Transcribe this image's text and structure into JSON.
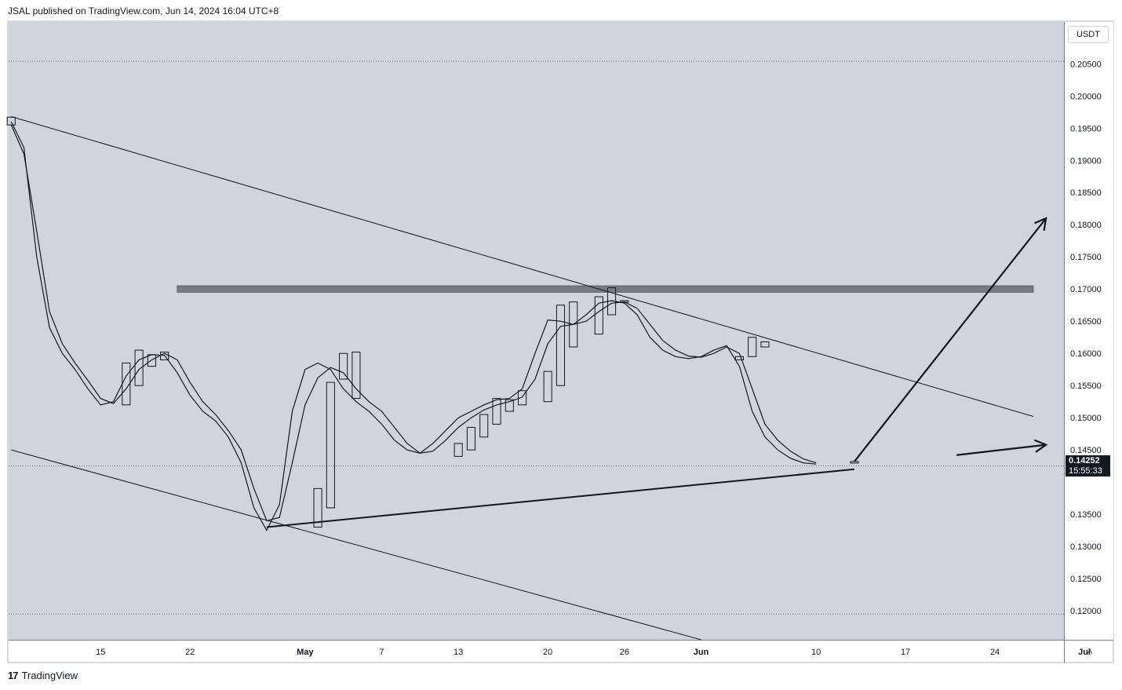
{
  "header": {
    "attribution": "JSAL published on TradingView.com, Jun 14, 2024 16:04 UTC+8"
  },
  "footer": {
    "logo_mark": "17",
    "brand": "TradingView"
  },
  "price_scale": {
    "currency": "USDT",
    "auto_label": "A"
  },
  "last_price": {
    "value": "0.14252",
    "countdown": "15:55:33"
  },
  "colors": {
    "background": "#d1d4dc",
    "line": "#131722",
    "zone": "#787b86",
    "grid": "#6a6d78"
  },
  "chart_data": {
    "type": "candlestick",
    "title": "",
    "x_ticks": [
      {
        "label": "15",
        "day": 15
      },
      {
        "label": "22",
        "day": 22
      },
      {
        "label": "May",
        "day": 31
      },
      {
        "label": "7",
        "day": 37
      },
      {
        "label": "13",
        "day": 43
      },
      {
        "label": "20",
        "day": 50
      },
      {
        "label": "26",
        "day": 56
      },
      {
        "label": "Jun",
        "day": 62
      },
      {
        "label": "10",
        "day": 71
      },
      {
        "label": "17",
        "day": 78
      },
      {
        "label": "24",
        "day": 85
      },
      {
        "label": "Jul",
        "day": 92
      }
    ],
    "y_ticks": [
      "0.20500",
      "0.20000",
      "0.19500",
      "0.19000",
      "0.18500",
      "0.18000",
      "0.17500",
      "0.17000",
      "0.16500",
      "0.16000",
      "0.15500",
      "0.15000",
      "0.14500",
      "0.14252",
      "0.13500",
      "0.13000",
      "0.12500",
      "0.12000"
    ],
    "y_range": [
      0.1155,
      0.2115
    ],
    "x_range": [
      7.8,
      90.4
    ],
    "candles": [
      {
        "day": 8,
        "open": 0.1955,
        "close": 0.1967
      },
      {
        "day": 17,
        "open": 0.152,
        "close": 0.1585
      },
      {
        "day": 18,
        "open": 0.155,
        "close": 0.1605
      },
      {
        "day": 19,
        "open": 0.158,
        "close": 0.1598
      },
      {
        "day": 20,
        "open": 0.159,
        "close": 0.1602
      },
      {
        "day": 32,
        "open": 0.133,
        "close": 0.139
      },
      {
        "day": 33,
        "open": 0.136,
        "close": 0.1555
      },
      {
        "day": 34,
        "open": 0.156,
        "close": 0.16
      },
      {
        "day": 35,
        "open": 0.153,
        "close": 0.1602
      },
      {
        "day": 43,
        "open": 0.144,
        "close": 0.146
      },
      {
        "day": 44,
        "open": 0.145,
        "close": 0.1485
      },
      {
        "day": 45,
        "open": 0.147,
        "close": 0.1505
      },
      {
        "day": 46,
        "open": 0.149,
        "close": 0.153
      },
      {
        "day": 47,
        "open": 0.151,
        "close": 0.1528
      },
      {
        "day": 48,
        "open": 0.152,
        "close": 0.1542
      },
      {
        "day": 50,
        "open": 0.1525,
        "close": 0.1572
      },
      {
        "day": 51,
        "open": 0.155,
        "close": 0.1675
      },
      {
        "day": 52,
        "open": 0.161,
        "close": 0.168
      },
      {
        "day": 54,
        "open": 0.163,
        "close": 0.1688
      },
      {
        "day": 55,
        "open": 0.166,
        "close": 0.1702
      },
      {
        "day": 56,
        "open": 0.168,
        "close": 0.1682
      },
      {
        "day": 65,
        "open": 0.159,
        "close": 0.1595
      },
      {
        "day": 66,
        "open": 0.1595,
        "close": 0.1625
      },
      {
        "day": 67,
        "open": 0.161,
        "close": 0.1618
      },
      {
        "day": 74,
        "open": 0.143,
        "close": 0.1432
      }
    ],
    "series": [
      {
        "points": [
          [
            8,
            0.196
          ],
          [
            9,
            0.192
          ],
          [
            10,
            0.175
          ],
          [
            11,
            0.164
          ],
          [
            12,
            0.16
          ],
          [
            13,
            0.1575
          ],
          [
            14,
            0.1545
          ],
          [
            15,
            0.152
          ],
          [
            16,
            0.1525
          ],
          [
            17,
            0.1565
          ],
          [
            18,
            0.159
          ],
          [
            19,
            0.1598
          ],
          [
            20,
            0.1597
          ],
          [
            21,
            0.157
          ],
          [
            22,
            0.1535
          ],
          [
            23,
            0.151
          ],
          [
            24,
            0.1495
          ],
          [
            25,
            0.147
          ],
          [
            26,
            0.143
          ],
          [
            27,
            0.136
          ],
          [
            28,
            0.1325
          ],
          [
            29,
            0.1365
          ],
          [
            30,
            0.151
          ],
          [
            31,
            0.1575
          ],
          [
            32,
            0.1585
          ],
          [
            33,
            0.1575
          ],
          [
            34,
            0.1545
          ],
          [
            35,
            0.1525
          ],
          [
            36,
            0.151
          ],
          [
            37,
            0.149
          ],
          [
            38,
            0.1465
          ],
          [
            39,
            0.145
          ],
          [
            40,
            0.1445
          ],
          [
            41,
            0.146
          ],
          [
            42,
            0.148
          ],
          [
            43,
            0.15
          ],
          [
            44,
            0.151
          ],
          [
            45,
            0.152
          ],
          [
            46,
            0.1528
          ],
          [
            47,
            0.153
          ],
          [
            48,
            0.1545
          ],
          [
            49,
            0.16
          ],
          [
            50,
            0.1652
          ],
          [
            51,
            0.165
          ],
          [
            52,
            0.1645
          ],
          [
            53,
            0.166
          ],
          [
            54,
            0.1678
          ],
          [
            55,
            0.1682
          ],
          [
            56,
            0.1678
          ],
          [
            57,
            0.166
          ],
          [
            58,
            0.1625
          ],
          [
            59,
            0.1605
          ],
          [
            60,
            0.1595
          ],
          [
            61,
            0.1592
          ],
          [
            62,
            0.1595
          ],
          [
            63,
            0.1605
          ],
          [
            64,
            0.1612
          ],
          [
            65,
            0.158
          ],
          [
            66,
            0.151
          ],
          [
            67,
            0.147
          ],
          [
            68,
            0.145
          ],
          [
            69,
            0.1437
          ],
          [
            70,
            0.143
          ],
          [
            71,
            0.1428
          ]
        ]
      },
      {
        "points": [
          [
            8,
            0.1955
          ],
          [
            9,
            0.191
          ],
          [
            10,
            0.179
          ],
          [
            11,
            0.1665
          ],
          [
            12,
            0.1615
          ],
          [
            13,
            0.1585
          ],
          [
            14,
            0.1558
          ],
          [
            15,
            0.153
          ],
          [
            16,
            0.1522
          ],
          [
            17,
            0.1545
          ],
          [
            18,
            0.1575
          ],
          [
            19,
            0.159
          ],
          [
            20,
            0.16
          ],
          [
            21,
            0.159
          ],
          [
            22,
            0.1555
          ],
          [
            23,
            0.1525
          ],
          [
            24,
            0.1505
          ],
          [
            25,
            0.148
          ],
          [
            26,
            0.145
          ],
          [
            27,
            0.139
          ],
          [
            28,
            0.134
          ],
          [
            29,
            0.1345
          ],
          [
            30,
            0.143
          ],
          [
            31,
            0.152
          ],
          [
            32,
            0.1562
          ],
          [
            33,
            0.1578
          ],
          [
            34,
            0.157
          ],
          [
            35,
            0.1545
          ],
          [
            36,
            0.1525
          ],
          [
            37,
            0.151
          ],
          [
            38,
            0.1485
          ],
          [
            39,
            0.146
          ],
          [
            40,
            0.1445
          ],
          [
            41,
            0.1448
          ],
          [
            42,
            0.1465
          ],
          [
            43,
            0.1485
          ],
          [
            44,
            0.15
          ],
          [
            45,
            0.1512
          ],
          [
            46,
            0.152
          ],
          [
            47,
            0.1525
          ],
          [
            48,
            0.1532
          ],
          [
            49,
            0.156
          ],
          [
            50,
            0.1615
          ],
          [
            51,
            0.1642
          ],
          [
            52,
            0.1645
          ],
          [
            53,
            0.165
          ],
          [
            54,
            0.1665
          ],
          [
            55,
            0.1678
          ],
          [
            56,
            0.168
          ],
          [
            57,
            0.167
          ],
          [
            58,
            0.1645
          ],
          [
            59,
            0.162
          ],
          [
            60,
            0.1605
          ],
          [
            61,
            0.1596
          ],
          [
            62,
            0.1594
          ],
          [
            63,
            0.16
          ],
          [
            64,
            0.161
          ],
          [
            65,
            0.16
          ],
          [
            66,
            0.1545
          ],
          [
            67,
            0.149
          ],
          [
            68,
            0.1465
          ],
          [
            69,
            0.1448
          ],
          [
            70,
            0.1436
          ],
          [
            71,
            0.143
          ]
        ]
      }
    ],
    "zone": {
      "from_day": 21,
      "to_day": 88,
      "top": 0.1705,
      "bottom": 0.1695
    },
    "trendlines": [
      {
        "from": [
          8,
          0.1968
        ],
        "to": [
          88,
          0.1502
        ],
        "weight": 1
      },
      {
        "from": [
          8,
          0.145
        ],
        "to": [
          62,
          0.1155
        ],
        "weight": 1
      },
      {
        "from": [
          28,
          0.133
        ],
        "to": [
          74,
          0.142
        ],
        "weight": 2
      }
    ],
    "arrows": [
      {
        "from": [
          74,
          0.1432
        ],
        "to": [
          89,
          0.181
        ]
      },
      {
        "from": [
          82,
          0.1442
        ],
        "to": [
          89,
          0.1458
        ]
      }
    ],
    "dotted_levels": [
      0.2054,
      0.14252,
      0.1195
    ]
  }
}
